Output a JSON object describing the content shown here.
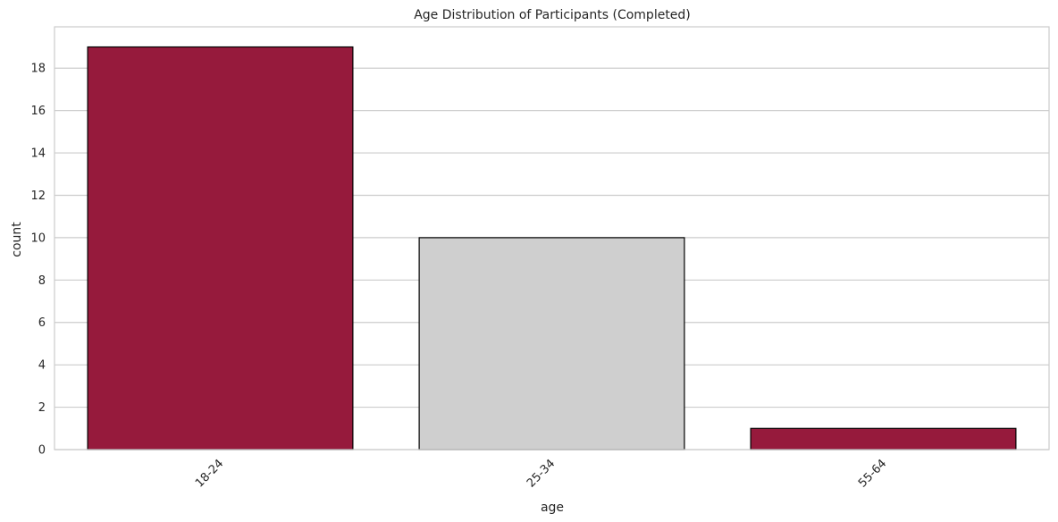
{
  "chart_data": {
    "type": "bar",
    "title": "Age Distribution of Participants (Completed)",
    "xlabel": "age",
    "ylabel": "count",
    "categories": [
      "18-24",
      "25-34",
      "55-64"
    ],
    "values": [
      19,
      10,
      1
    ],
    "bar_colors": [
      "#961a3c",
      "#cfcfcf",
      "#961a3c"
    ],
    "bar_edge_color": "#000000",
    "ylim": [
      0,
      19.95
    ],
    "yticks": [
      0,
      2,
      4,
      6,
      8,
      10,
      12,
      14,
      16,
      18
    ],
    "grid": "horizontal",
    "grid_color": "#cccccc",
    "spine_color": "#cccccc",
    "xtick_rotation_deg": 45
  }
}
